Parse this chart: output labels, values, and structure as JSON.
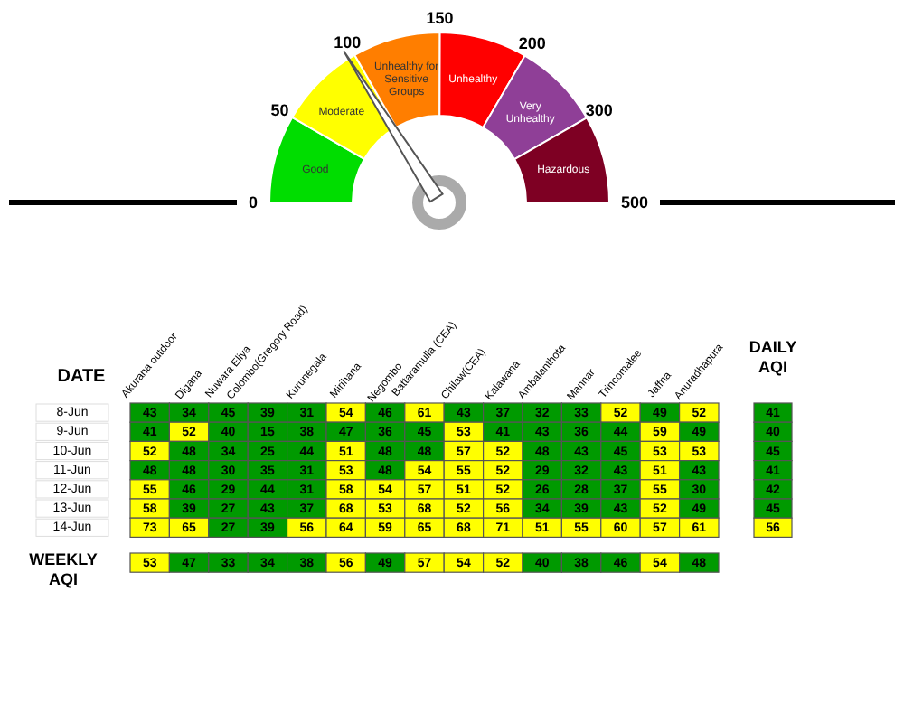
{
  "chart_data": [
    {
      "type": "donut",
      "categories": [
        "Good",
        "Moderate",
        "Unhealthy for Sensitive Groups",
        "Unhealthy",
        "Very Unhealthy",
        "Hazardous"
      ],
      "values": [
        16.7,
        16.7,
        16.7,
        16.7,
        16.6,
        16.6
      ],
      "colors": [
        "#00dd00",
        "#ffff00",
        "#ff7e00",
        "#ff0000",
        "#8f3f97",
        "#7e0023"
      ],
      "annotations": [
        "0",
        "50",
        "100",
        "150",
        "200",
        "300",
        "500"
      ],
      "needle": "Moderate"
    },
    {
      "type": "heatmap",
      "ylabel": "DATE",
      "categories": [
        "Akurana outdoor",
        "Digana",
        "Nuwara Eliya",
        "Colombo(Gregory Road)",
        "Kurunegala",
        "Mirihana",
        "Negombo",
        "Battaramulla (CEA)",
        "Chilaw(CEA)",
        "Kalawana",
        "Ambalanthota",
        "Mannar",
        "Trincomalee",
        "Jaffna",
        "Anuradhapura"
      ],
      "y_categories": [
        "8-Jun",
        "9-Jun",
        "10-Jun",
        "11-Jun",
        "12-Jun",
        "13-Jun",
        "14-Jun"
      ],
      "colors": [
        "#009a00",
        "#ffff00"
      ],
      "data_labels": true,
      "cells": [
        [
          43,
          34,
          45,
          39,
          31,
          54,
          46,
          61,
          43,
          37,
          32,
          33,
          52,
          49,
          52
        ],
        [
          41,
          52,
          40,
          15,
          38,
          47,
          36,
          45,
          53,
          41,
          43,
          36,
          44,
          59,
          49
        ],
        [
          52,
          48,
          34,
          25,
          44,
          51,
          48,
          48,
          57,
          52,
          48,
          43,
          45,
          53,
          53
        ],
        [
          48,
          48,
          30,
          35,
          31,
          53,
          48,
          54,
          55,
          52,
          29,
          32,
          43,
          51,
          43
        ],
        [
          55,
          46,
          29,
          44,
          31,
          58,
          54,
          57,
          51,
          52,
          26,
          28,
          37,
          55,
          30
        ],
        [
          58,
          39,
          27,
          43,
          37,
          68,
          53,
          68,
          52,
          56,
          34,
          39,
          43,
          52,
          49
        ],
        [
          73,
          65,
          27,
          39,
          56,
          64,
          59,
          65,
          68,
          71,
          51,
          55,
          60,
          57,
          61
        ]
      ]
    },
    {
      "type": "heatmap",
      "categories": [
        "DAILY AQI"
      ],
      "y_categories": [
        "8-Jun",
        "9-Jun",
        "10-Jun",
        "11-Jun",
        "12-Jun",
        "13-Jun",
        "14-Jun"
      ],
      "tick_labels": "x",
      "colors": [
        "#009a00",
        "#ffff00"
      ],
      "data_labels": true,
      "cells": [
        [
          41
        ],
        [
          40
        ],
        [
          45
        ],
        [
          41
        ],
        [
          42
        ],
        [
          45
        ],
        [
          56
        ]
      ]
    },
    {
      "type": "heatmap",
      "categories": [
        "Akurana outdoor",
        "Digana",
        "Nuwara Eliya",
        "Colombo(Gregory Road)",
        "Kurunegala",
        "Mirihana",
        "Negombo",
        "Battaramulla (CEA)",
        "Chilaw(CEA)",
        "Kalawana",
        "Ambalanthota",
        "Mannar",
        "Trincomalee",
        "Jaffna",
        "Anuradhapura"
      ],
      "y_categories": [
        "WEEKLY AQI"
      ],
      "tick_labels": "y",
      "colors": [
        "#009a00",
        "#ffff00"
      ],
      "data_labels": true,
      "cells": [
        [
          53,
          47,
          33,
          34,
          38,
          56,
          49,
          57,
          54,
          52,
          40,
          38,
          46,
          54,
          48
        ]
      ]
    }
  ]
}
